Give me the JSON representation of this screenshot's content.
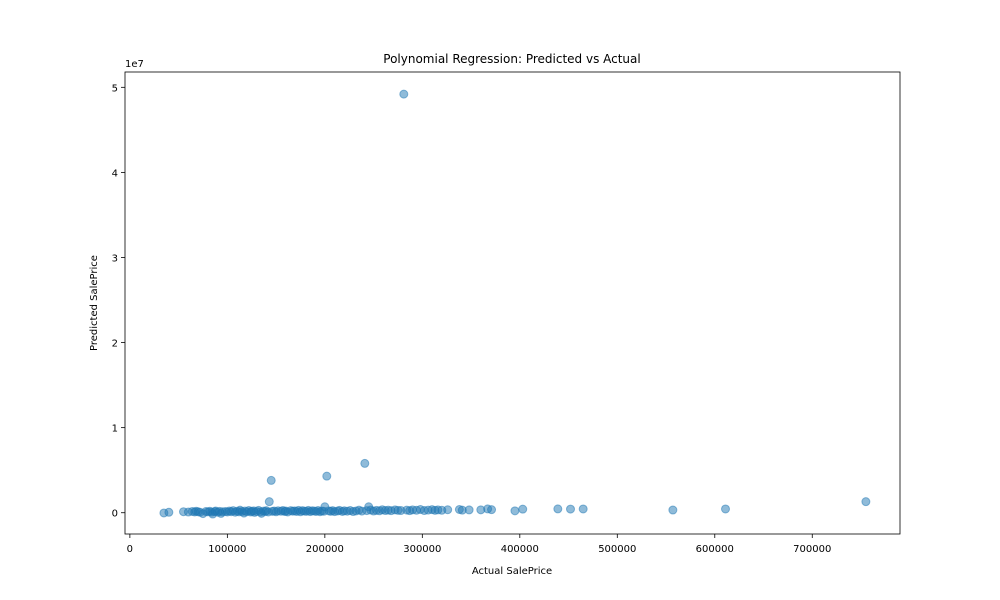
{
  "chart_data": {
    "type": "scatter",
    "title": "Polynomial Regression: Predicted vs Actual",
    "xlabel": "Actual SalePrice",
    "ylabel": "Predicted SalePrice",
    "xlim": [
      -5000,
      790000
    ],
    "ylim": [
      -2500000,
      51800000
    ],
    "x_ticks": [
      0,
      100000,
      200000,
      300000,
      400000,
      500000,
      600000,
      700000
    ],
    "x_tick_labels": [
      "0",
      "100000",
      "200000",
      "300000",
      "400000",
      "500000",
      "600000",
      "700000"
    ],
    "y_ticks": [
      0,
      10000000,
      20000000,
      30000000,
      40000000,
      50000000
    ],
    "y_tick_labels": [
      "0",
      "1",
      "2",
      "3",
      "4",
      "5"
    ],
    "y_offset_label": "1e7",
    "grid": false,
    "marker_color": "#1f77b4",
    "marker_alpha": 0.5,
    "series": [
      {
        "points": [
          [
            34900,
            -30000
          ],
          [
            40000,
            50000
          ],
          [
            55000,
            120000
          ],
          [
            60000,
            80000
          ],
          [
            64000,
            150000
          ],
          [
            66500,
            90000
          ],
          [
            68000,
            180000
          ],
          [
            70000,
            110000
          ],
          [
            72000,
            60000
          ],
          [
            75000,
            -100000
          ],
          [
            78000,
            140000
          ],
          [
            80000,
            100000
          ],
          [
            82000,
            170000
          ],
          [
            84000,
            70000
          ],
          [
            85000,
            -150000
          ],
          [
            87000,
            130000
          ],
          [
            88000,
            200000
          ],
          [
            90000,
            60000
          ],
          [
            92000,
            160000
          ],
          [
            93500,
            -80000
          ],
          [
            95000,
            110000
          ],
          [
            98000,
            150000
          ],
          [
            100000,
            90000
          ],
          [
            102000,
            200000
          ],
          [
            104000,
            120000
          ],
          [
            106000,
            250000
          ],
          [
            108000,
            60000
          ],
          [
            110000,
            180000
          ],
          [
            112000,
            100000
          ],
          [
            113000,
            300000
          ],
          [
            115000,
            140000
          ],
          [
            117000,
            -40000
          ],
          [
            118000,
            210000
          ],
          [
            120000,
            120000
          ],
          [
            122000,
            260000
          ],
          [
            124000,
            80000
          ],
          [
            125000,
            170000
          ],
          [
            127000,
            220000
          ],
          [
            128000,
            40000
          ],
          [
            130000,
            150000
          ],
          [
            132000,
            280000
          ],
          [
            134000,
            100000
          ],
          [
            135000,
            -70000
          ],
          [
            137000,
            190000
          ],
          [
            139000,
            130000
          ],
          [
            140000,
            240000
          ],
          [
            142000,
            90000
          ],
          [
            143000,
            1300000
          ],
          [
            145000,
            3800000
          ],
          [
            146000,
            160000
          ],
          [
            148000,
            200000
          ],
          [
            150000,
            110000
          ],
          [
            152000,
            230000
          ],
          [
            155000,
            170000
          ],
          [
            157000,
            260000
          ],
          [
            159000,
            140000
          ],
          [
            160000,
            200000
          ],
          [
            162000,
            90000
          ],
          [
            165000,
            250000
          ],
          [
            167000,
            180000
          ],
          [
            169000,
            220000
          ],
          [
            171000,
            150000
          ],
          [
            173000,
            280000
          ],
          [
            175000,
            110000
          ],
          [
            177000,
            240000
          ],
          [
            179000,
            190000
          ],
          [
            181000,
            160000
          ],
          [
            183000,
            270000
          ],
          [
            185000,
            130000
          ],
          [
            187000,
            230000
          ],
          [
            189000,
            200000
          ],
          [
            191000,
            150000
          ],
          [
            193000,
            260000
          ],
          [
            195000,
            120000
          ],
          [
            197000,
            210000
          ],
          [
            199000,
            170000
          ],
          [
            200000,
            700000
          ],
          [
            202000,
            4300000
          ],
          [
            204000,
            220000
          ],
          [
            206000,
            160000
          ],
          [
            208000,
            250000
          ],
          [
            210000,
            130000
          ],
          [
            213000,
            200000
          ],
          [
            215000,
            270000
          ],
          [
            218000,
            150000
          ],
          [
            220000,
            230000
          ],
          [
            223000,
            180000
          ],
          [
            226000,
            260000
          ],
          [
            229000,
            140000
          ],
          [
            232000,
            210000
          ],
          [
            235000,
            300000
          ],
          [
            238000,
            190000
          ],
          [
            241000,
            5800000
          ],
          [
            243000,
            250000
          ],
          [
            245000,
            700000
          ],
          [
            247000,
            320000
          ],
          [
            250000,
            200000
          ],
          [
            253000,
            280000
          ],
          [
            256000,
            230000
          ],
          [
            259000,
            350000
          ],
          [
            262000,
            260000
          ],
          [
            265000,
            300000
          ],
          [
            268000,
            240000
          ],
          [
            272000,
            330000
          ],
          [
            275000,
            280000
          ],
          [
            278000,
            260000
          ],
          [
            281000,
            49200000
          ],
          [
            284000,
            310000
          ],
          [
            287000,
            240000
          ],
          [
            290000,
            340000
          ],
          [
            294000,
            290000
          ],
          [
            298000,
            380000
          ],
          [
            302000,
            260000
          ],
          [
            306000,
            310000
          ],
          [
            310000,
            360000
          ],
          [
            313000,
            280000
          ],
          [
            316000,
            330000
          ],
          [
            320000,
            290000
          ],
          [
            326000,
            350000
          ],
          [
            338000,
            380000
          ],
          [
            341000,
            300000
          ],
          [
            348000,
            330000
          ],
          [
            360000,
            340000
          ],
          [
            367000,
            450000
          ],
          [
            371000,
            360000
          ],
          [
            395000,
            220000
          ],
          [
            403000,
            420000
          ],
          [
            439000,
            450000
          ],
          [
            452000,
            430000
          ],
          [
            465000,
            440000
          ],
          [
            557000,
            320000
          ],
          [
            611000,
            440000
          ],
          [
            755000,
            1300000
          ]
        ]
      }
    ]
  }
}
